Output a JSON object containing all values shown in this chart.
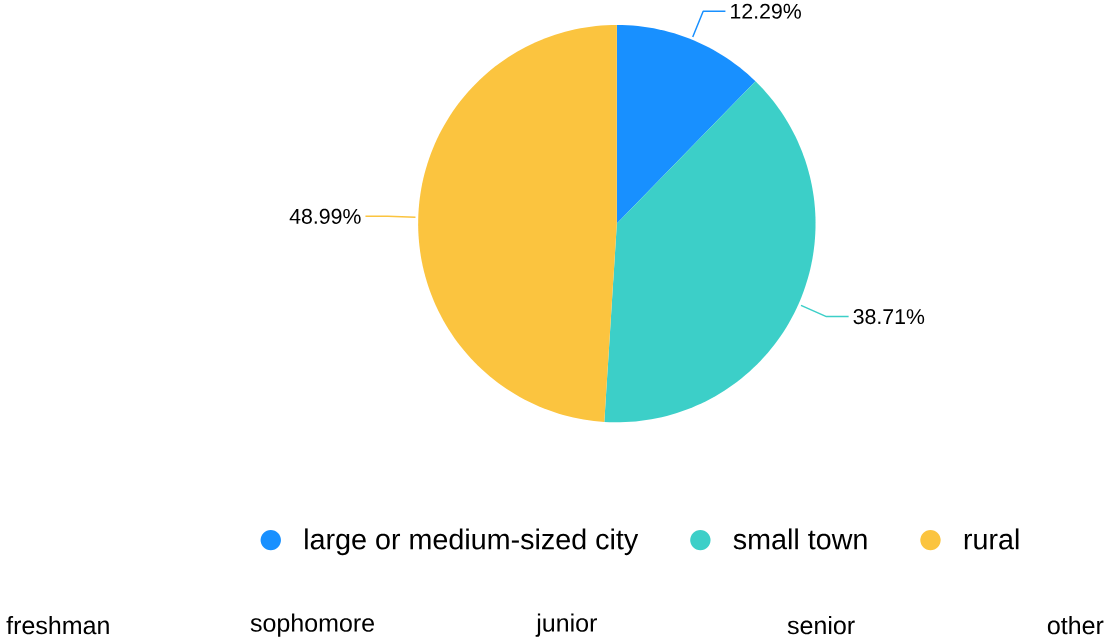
{
  "chart_data": {
    "type": "pie",
    "categories": [
      "large or medium-sized city",
      "small town",
      "rural"
    ],
    "values": [
      12.29,
      38.71,
      48.99
    ],
    "value_labels": [
      "12.29%",
      "38.71%",
      "48.99%"
    ],
    "colors": [
      "#1890ff",
      "#3ccfc8",
      "#fbc43f"
    ],
    "legend": "bottom",
    "annotations": [
      "freshman",
      "sophomore",
      "junior",
      "senior",
      "other"
    ]
  }
}
